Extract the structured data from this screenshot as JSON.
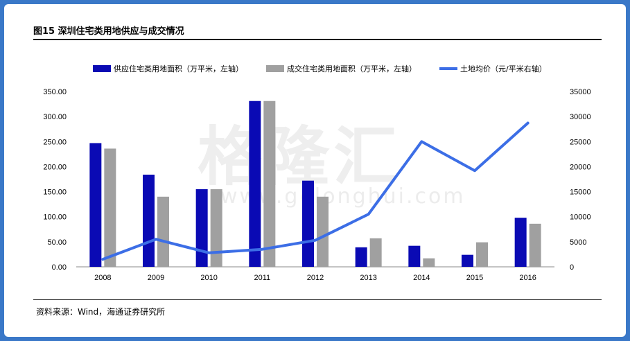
{
  "title": "图15 深圳住宅类用地供应与成交情况",
  "source": "资料来源：Wind，海通证券研究所",
  "watermark": {
    "text": "格隆汇",
    "url": "www.gelonghui.com"
  },
  "colors": {
    "supply": "#0a0ab4",
    "deal": "#a0a0a0",
    "price": "#3c6ee6",
    "background": "#3a78c8"
  },
  "chart_data": {
    "type": "bar",
    "categories": [
      "2008",
      "2009",
      "2010",
      "2011",
      "2012",
      "2013",
      "2014",
      "2015",
      "2016"
    ],
    "series": [
      {
        "name": "供应住宅类用地面积（万平米，左轴）",
        "type": "bar",
        "axis": "left",
        "values": [
          247,
          184,
          155,
          331,
          172,
          39,
          42,
          24,
          98
        ]
      },
      {
        "name": "成交住宅类用地面积（万平米，左轴）",
        "type": "bar",
        "axis": "left",
        "values": [
          236,
          140,
          155,
          331,
          140,
          57,
          17,
          49,
          86
        ]
      },
      {
        "name": "土地均价（元/平米右轴）",
        "type": "line",
        "axis": "right",
        "values": [
          1500,
          5500,
          2800,
          3500,
          5300,
          10500,
          25000,
          19200,
          28700
        ]
      }
    ],
    "left_axis": {
      "ylim": [
        0,
        350
      ],
      "ticks": [
        "0.00",
        "50.00",
        "100.00",
        "150.00",
        "200.00",
        "250.00",
        "300.00",
        "350.00"
      ]
    },
    "right_axis": {
      "ylim": [
        0,
        35000
      ],
      "ticks": [
        "0",
        "5000",
        "10000",
        "15000",
        "20000",
        "25000",
        "30000",
        "35000"
      ]
    },
    "legend_position": "top",
    "grid": false
  }
}
